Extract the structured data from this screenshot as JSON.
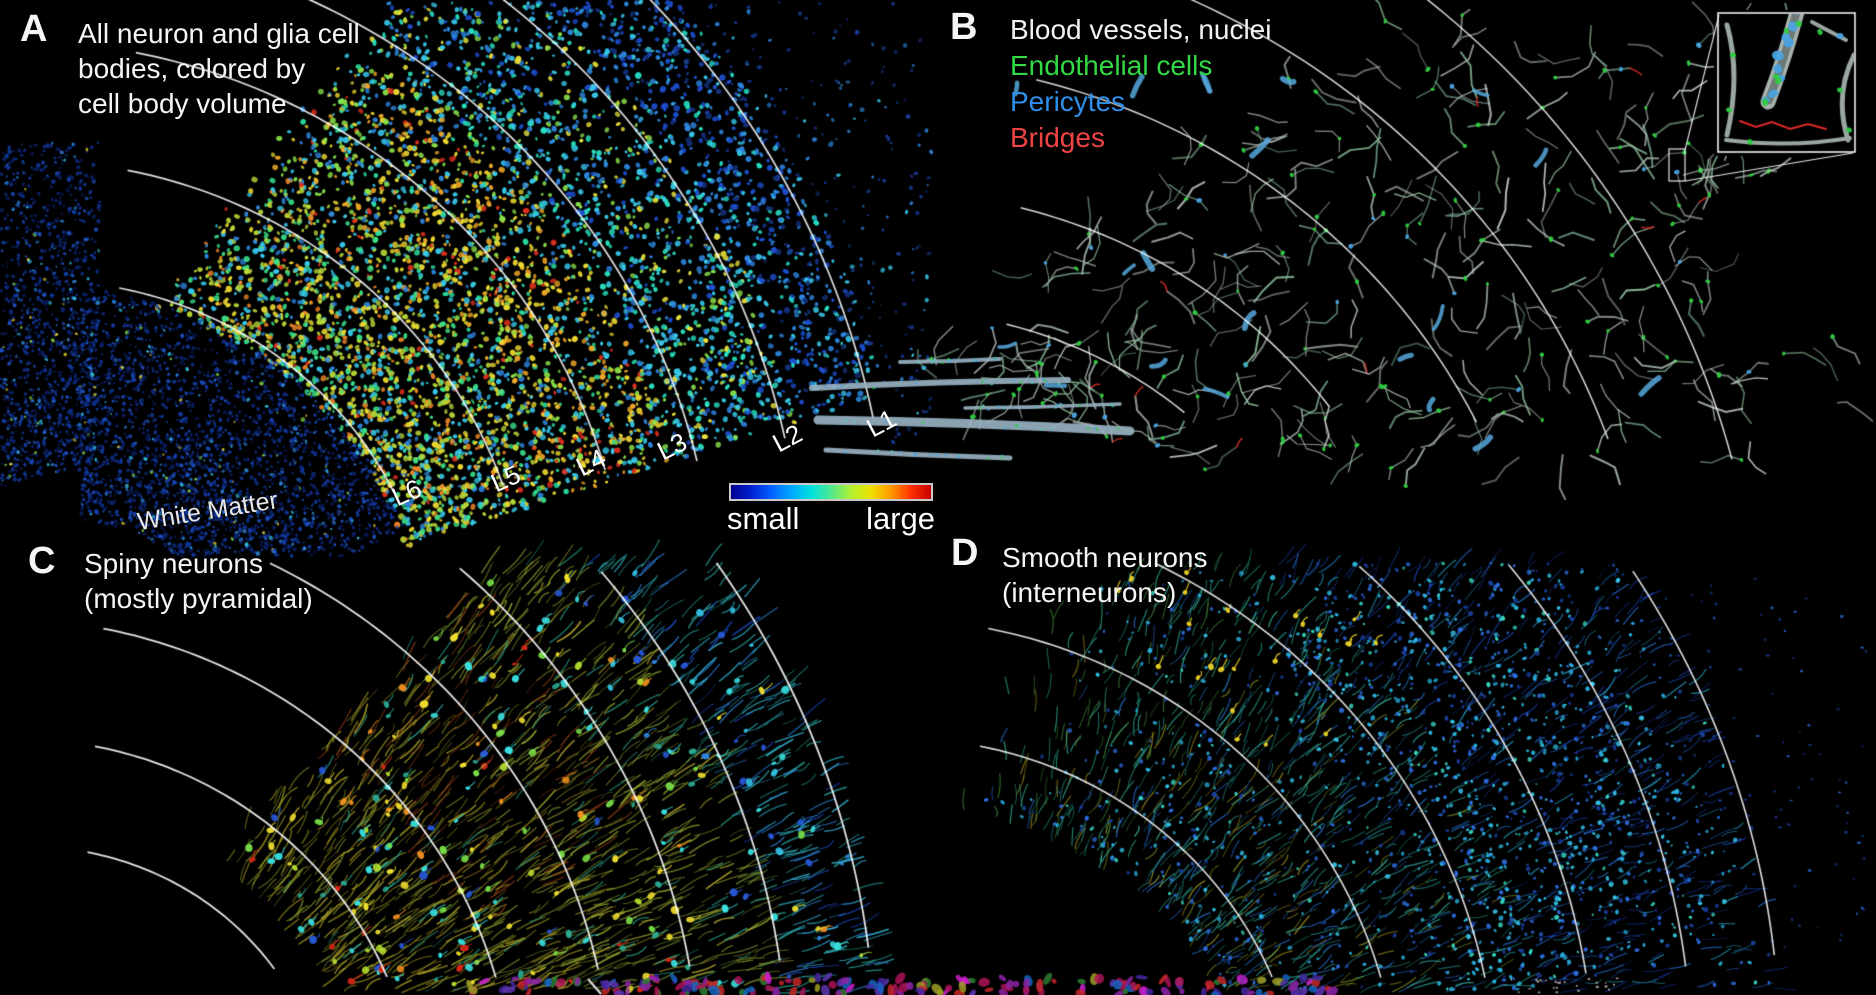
{
  "figure_bg": "#000000",
  "panels": {
    "a": {
      "letter": "A",
      "title_lines": [
        "All neuron and glia cell",
        "bodies, colored by",
        "cell body volume"
      ],
      "layer_labels": [
        "L6",
        "L5",
        "L4",
        "L3",
        "L2",
        "L1"
      ],
      "white_matter_label": "White Matter",
      "colorbar": {
        "small": "small",
        "large": "large",
        "gradient_stops": [
          "#00008f",
          "#0020d0",
          "#0060ff",
          "#00a8ff",
          "#00e0e0",
          "#50e890",
          "#b0f030",
          "#f0e000",
          "#ff9800",
          "#ff3000",
          "#c40000"
        ]
      }
    },
    "b": {
      "letter": "B",
      "legend": [
        {
          "label": "Blood vessels, nuclei",
          "color": "#f2f2f2"
        },
        {
          "label": "Endothelial cells",
          "color": "#33d844"
        },
        {
          "label": "Pericytes",
          "color": "#2f8fe8"
        },
        {
          "label": "Bridges",
          "color": "#ef4444"
        }
      ]
    },
    "c": {
      "letter": "C",
      "title_lines": [
        "Spiny neurons",
        "(mostly pyramidal)"
      ]
    },
    "d": {
      "letter": "D",
      "title_lines": [
        "Smooth neurons",
        "(interneurons)"
      ]
    }
  }
}
